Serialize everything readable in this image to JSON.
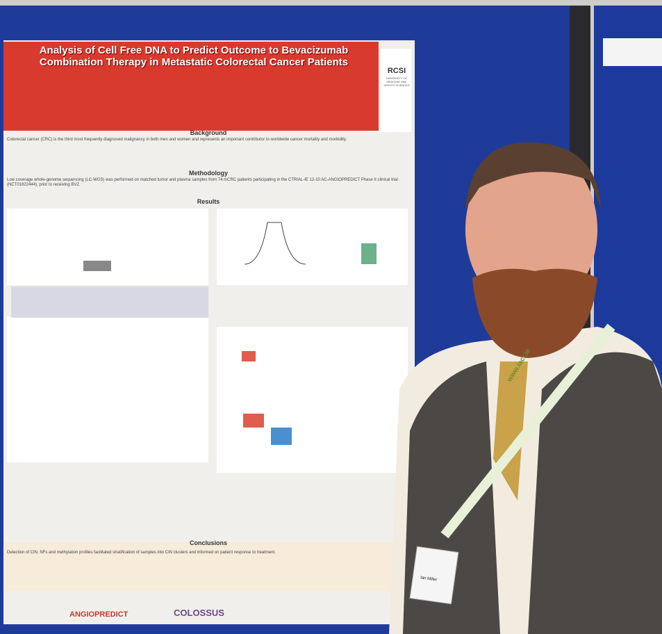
{
  "poster": {
    "title": "Analysis of Cell Free DNA to Predict Outcome to Bevacizumab Combination Therapy in Metastatic Colorectal Cancer Patients",
    "institution": "RCSI",
    "institution_subtitle": "UNIVERSITY OF MEDICINE AND HEALTH SCIENCES",
    "sections": {
      "background": {
        "heading": "Background",
        "text": "Colorectal cancer (CRC) is the third most frequently diagnosed malignancy in both men and women and represents an important contributor to worldwide cancer mortality and morbidity."
      },
      "methodology": {
        "heading": "Methodology",
        "text": "Low coverage whole-genome sequencing (LC-WGS) was performed on matched tumor and plasma samples from 74 mCRC patients participating in the CTRIAL-IE 12-10 AC-ANGIOPREDICT Phase II clinical trial (NCT01822444), prior to receiving BVZ."
      },
      "results": {
        "heading": "Results"
      },
      "conclusions": {
        "heading": "Conclusions",
        "text": "Detection of CIN, NFs and methylation profiles facilitated stratification of samples into CIN clusters and informed on patient response to treatment."
      }
    },
    "logos": [
      "ANGIOPREDICT",
      "COLOSSUS"
    ]
  },
  "badge": {
    "name": "Ian Miller"
  },
  "lanyard": {
    "text": "www.iacr.ie"
  }
}
